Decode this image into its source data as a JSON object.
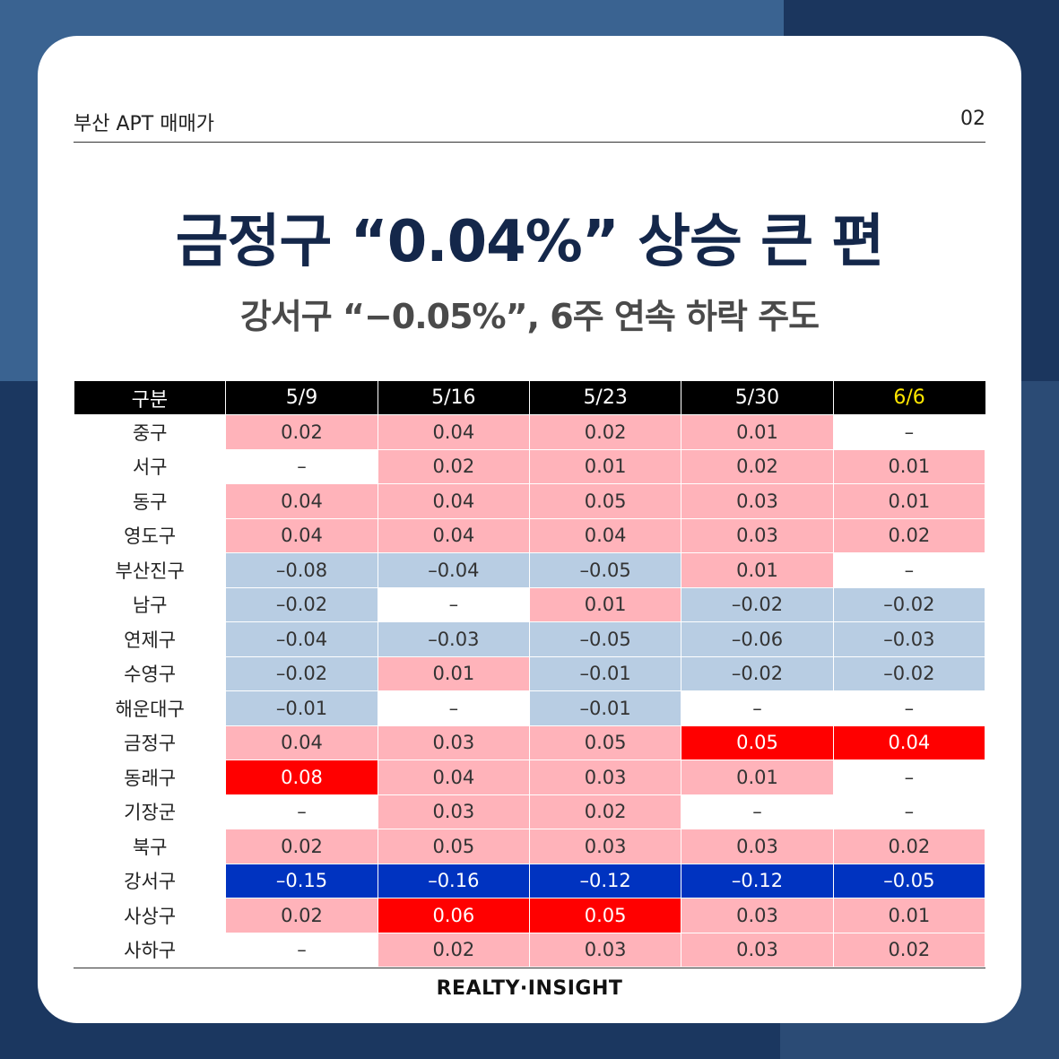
{
  "header": {
    "label": "부산 APT 매매가",
    "page_number": "02"
  },
  "title": "금정구 “0.04%” 상승 큰 편",
  "subtitle": "강서구 “−0.05%”, 6주 연속 하락 주도",
  "footer": "REALTY·INSIGHT",
  "colors": {
    "positive": "#ffb3ba",
    "negative": "#b8cde3",
    "strong_positive": "#ff0000",
    "strong_negative": "#0033c0",
    "title": "#14274a",
    "highlight_header": "#ffe600"
  },
  "chart_data": {
    "type": "table",
    "columns": [
      "구분",
      "5/9",
      "5/16",
      "5/23",
      "5/30",
      "6/6"
    ],
    "highlighted_column": "6/6",
    "rows": [
      {
        "district": "중구",
        "values": [
          "0.02",
          "0.04",
          "0.02",
          "0.01",
          "–"
        ],
        "emphasis": [
          "",
          "",
          "",
          "",
          ""
        ]
      },
      {
        "district": "서구",
        "values": [
          "–",
          "0.02",
          "0.01",
          "0.02",
          "0.01"
        ],
        "emphasis": [
          "",
          "",
          "",
          "",
          ""
        ]
      },
      {
        "district": "동구",
        "values": [
          "0.04",
          "0.04",
          "0.05",
          "0.03",
          "0.01"
        ],
        "emphasis": [
          "",
          "",
          "",
          "",
          ""
        ]
      },
      {
        "district": "영도구",
        "values": [
          "0.04",
          "0.04",
          "0.04",
          "0.03",
          "0.02"
        ],
        "emphasis": [
          "",
          "",
          "",
          "",
          ""
        ]
      },
      {
        "district": "부산진구",
        "values": [
          "–0.08",
          "–0.04",
          "–0.05",
          "0.01",
          "–"
        ],
        "emphasis": [
          "",
          "",
          "",
          "",
          ""
        ]
      },
      {
        "district": "남구",
        "values": [
          "–0.02",
          "–",
          "0.01",
          "–0.02",
          "–0.02"
        ],
        "emphasis": [
          "",
          "",
          "",
          "",
          ""
        ]
      },
      {
        "district": "연제구",
        "values": [
          "–0.04",
          "–0.03",
          "–0.05",
          "–0.06",
          "–0.03"
        ],
        "emphasis": [
          "",
          "",
          "",
          "",
          ""
        ]
      },
      {
        "district": "수영구",
        "values": [
          "–0.02",
          "0.01",
          "–0.01",
          "–0.02",
          "–0.02"
        ],
        "emphasis": [
          "",
          "",
          "",
          "",
          ""
        ]
      },
      {
        "district": "해운대구",
        "values": [
          "–0.01",
          "–",
          "–0.01",
          "–",
          "–"
        ],
        "emphasis": [
          "",
          "",
          "",
          "",
          ""
        ]
      },
      {
        "district": "금정구",
        "values": [
          "0.04",
          "0.03",
          "0.05",
          "0.05",
          "0.04"
        ],
        "emphasis": [
          "",
          "",
          "",
          "strong",
          "strong"
        ]
      },
      {
        "district": "동래구",
        "values": [
          "0.08",
          "0.04",
          "0.03",
          "0.01",
          "–"
        ],
        "emphasis": [
          "strong",
          "",
          "",
          "",
          ""
        ]
      },
      {
        "district": "기장군",
        "values": [
          "–",
          "0.03",
          "0.02",
          "–",
          "–"
        ],
        "emphasis": [
          "",
          "",
          "",
          "",
          ""
        ]
      },
      {
        "district": "북구",
        "values": [
          "0.02",
          "0.05",
          "0.03",
          "0.03",
          "0.02"
        ],
        "emphasis": [
          "",
          "",
          "",
          "",
          ""
        ]
      },
      {
        "district": "강서구",
        "values": [
          "–0.15",
          "–0.16",
          "–0.12",
          "–0.12",
          "–0.05"
        ],
        "emphasis": [
          "strong",
          "strong",
          "strong",
          "strong",
          "strong"
        ]
      },
      {
        "district": "사상구",
        "values": [
          "0.02",
          "0.06",
          "0.05",
          "0.03",
          "0.01"
        ],
        "emphasis": [
          "",
          "strong",
          "strong",
          "",
          ""
        ]
      },
      {
        "district": "사하구",
        "values": [
          "–",
          "0.02",
          "0.03",
          "0.03",
          "0.02"
        ],
        "emphasis": [
          "",
          "",
          "",
          "",
          ""
        ]
      }
    ]
  }
}
